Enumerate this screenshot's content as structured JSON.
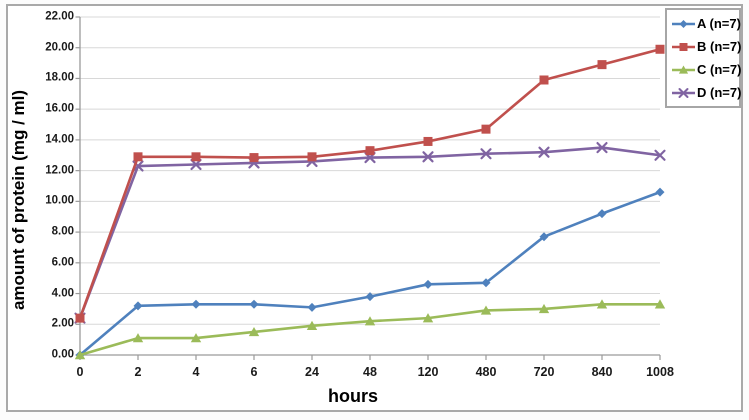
{
  "chart_data": {
    "type": "line",
    "title": "",
    "xlabel": "hours",
    "ylabel": "amount of protein (mg / ml)",
    "categories": [
      "0",
      "2",
      "4",
      "6",
      "24",
      "48",
      "120",
      "480",
      "720",
      "840",
      "1008"
    ],
    "series": [
      {
        "name": "A (n=7)",
        "color": "#4F81BD",
        "marker": "diamond",
        "values": [
          0,
          3.2,
          3.3,
          3.3,
          3.1,
          3.8,
          4.6,
          4.7,
          7.7,
          9.2,
          10.6
        ]
      },
      {
        "name": "B (n=7)",
        "color": "#C0504D",
        "marker": "square",
        "values": [
          2.4,
          12.9,
          12.9,
          12.85,
          12.9,
          13.3,
          13.9,
          14.7,
          17.9,
          18.9,
          19.9
        ]
      },
      {
        "name": "C (n=7)",
        "color": "#9BBB59",
        "marker": "triangle",
        "values": [
          0,
          1.1,
          1.1,
          1.5,
          1.9,
          2.2,
          2.4,
          2.9,
          3.0,
          3.3,
          3.3
        ]
      },
      {
        "name": "D (n=7)",
        "color": "#8064A2",
        "marker": "x",
        "values": [
          2.4,
          12.3,
          12.4,
          12.5,
          12.6,
          12.85,
          12.9,
          13.1,
          13.2,
          13.5,
          13.0
        ]
      }
    ],
    "ylim": [
      0,
      22
    ],
    "ytick_step": 2,
    "ytick_labels": [
      "0.00",
      "2.00",
      "4.00",
      "6.00",
      "8.00",
      "10.00",
      "12.00",
      "14.00",
      "16.00",
      "18.00",
      "20.00",
      "22.00"
    ],
    "grid": true,
    "legend_position": "top-right",
    "draw_order": [
      0,
      2,
      3,
      1
    ]
  }
}
